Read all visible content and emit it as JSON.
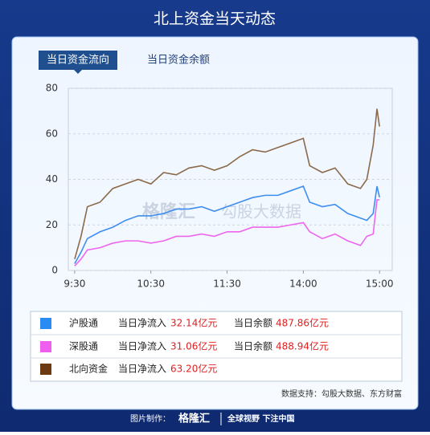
{
  "header": {
    "title": "北上资金当天动态"
  },
  "tabs": [
    "当日资金流向",
    "当日资金余额"
  ],
  "watermark": [
    "格隆汇",
    "勾股大数据"
  ],
  "chart_data": {
    "type": "line",
    "x": [
      0,
      5,
      10,
      20,
      30,
      40,
      50,
      60,
      70,
      80,
      90,
      100,
      110,
      120,
      130,
      140,
      150,
      160,
      170,
      180,
      185,
      195,
      205,
      215,
      225,
      230,
      235,
      238,
      240
    ],
    "xlim": [
      -5,
      250
    ],
    "xticks": [
      {
        "value": 0,
        "label": "9:30"
      },
      {
        "value": 60,
        "label": "10:30"
      },
      {
        "value": 120,
        "label": "11:30"
      },
      {
        "value": 180,
        "label": "14:00"
      },
      {
        "value": 240,
        "label": "15:00"
      }
    ],
    "ylim": [
      0,
      80
    ],
    "yticks": [
      0,
      20,
      40,
      60,
      80
    ],
    "grid": true,
    "series": [
      {
        "name": "沪股通",
        "color": "#3d8ef0",
        "values": [
          3,
          8,
          14,
          17,
          19,
          22,
          24,
          24,
          25,
          27,
          27,
          28,
          26,
          28,
          30,
          32,
          33,
          33,
          35,
          37,
          30,
          28,
          29,
          25,
          23,
          22,
          25,
          37,
          32.14
        ]
      },
      {
        "name": "深股通",
        "color": "#ee66ee",
        "values": [
          2,
          5,
          9,
          10,
          12,
          13,
          13,
          12,
          13,
          15,
          15,
          16,
          15,
          17,
          17,
          19,
          19,
          19,
          20,
          21,
          17,
          14,
          16,
          13,
          11,
          15,
          16,
          31,
          31.06
        ]
      },
      {
        "name": "北向资金",
        "color": "#8b6a4a",
        "values": [
          5,
          15,
          28,
          30,
          36,
          38,
          40,
          38,
          43,
          42,
          45,
          46,
          44,
          46,
          50,
          53,
          52,
          54,
          56,
          58,
          46,
          43,
          45,
          38,
          36,
          40,
          55,
          71,
          63.2
        ]
      }
    ],
    "legend_colors": [
      "#2a8cf2",
      "#f05ef0",
      "#6b3a10"
    ]
  },
  "summary": [
    [
      "当日净流入",
      "32.14亿元",
      "当日余额",
      "487.86亿元"
    ],
    [
      "当日净流入",
      "31.06亿元",
      "当日余额",
      "488.94亿元"
    ],
    [
      "当日净流入",
      "63.20亿元"
    ]
  ],
  "source": "数据支持：勾股大数据、东方财富",
  "footer": [
    "图片制作：",
    "格隆汇",
    "全球视野 下注中国"
  ]
}
